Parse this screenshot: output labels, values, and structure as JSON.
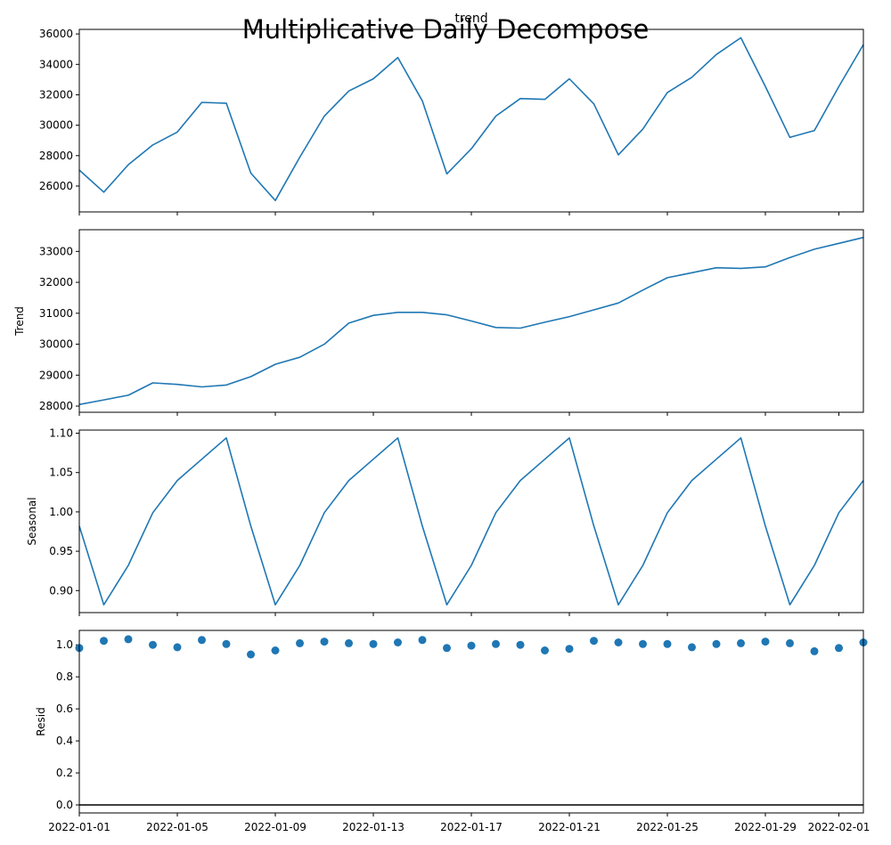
{
  "figure": {
    "suptitle": "Multiplicative Daily Decompose",
    "line_color": "#1f77b4",
    "axes_color": "#000000"
  },
  "chart_data": [
    {
      "type": "line",
      "title": "trend",
      "xlabel": "",
      "ylabel": "",
      "grid": false,
      "x": [
        "2022-01-01",
        "2022-01-02",
        "2022-01-03",
        "2022-01-04",
        "2022-01-05",
        "2022-01-06",
        "2022-01-07",
        "2022-01-08",
        "2022-01-09",
        "2022-01-10",
        "2022-01-11",
        "2022-01-12",
        "2022-01-13",
        "2022-01-14",
        "2022-01-15",
        "2022-01-16",
        "2022-01-17",
        "2022-01-18",
        "2022-01-19",
        "2022-01-20",
        "2022-01-21",
        "2022-01-22",
        "2022-01-23",
        "2022-01-24",
        "2022-01-25",
        "2022-01-26",
        "2022-01-27",
        "2022-01-28",
        "2022-01-29",
        "2022-01-30",
        "2022-01-31",
        "2022-02-01",
        "2022-02-02"
      ],
      "values": [
        27050,
        25600,
        27400,
        28700,
        29550,
        31500,
        31450,
        26850,
        25050,
        27900,
        30600,
        32250,
        33050,
        34450,
        31600,
        26800,
        28450,
        30600,
        31750,
        31700,
        33050,
        31400,
        28050,
        29750,
        32150,
        33150,
        34650,
        35750,
        32550,
        29200,
        29650,
        32550,
        35300
      ],
      "ylim": [
        24300,
        36300
      ],
      "yticks": [
        26000,
        28000,
        30000,
        32000,
        34000,
        36000
      ],
      "show_xtick_labels": false
    },
    {
      "type": "line",
      "title": "",
      "xlabel": "",
      "ylabel": "Trend",
      "grid": false,
      "x": [
        "2022-01-01",
        "2022-01-02",
        "2022-01-03",
        "2022-01-04",
        "2022-01-05",
        "2022-01-06",
        "2022-01-07",
        "2022-01-08",
        "2022-01-09",
        "2022-01-10",
        "2022-01-11",
        "2022-01-12",
        "2022-01-13",
        "2022-01-14",
        "2022-01-15",
        "2022-01-16",
        "2022-01-17",
        "2022-01-18",
        "2022-01-19",
        "2022-01-20",
        "2022-01-21",
        "2022-01-22",
        "2022-01-23",
        "2022-01-24",
        "2022-01-25",
        "2022-01-26",
        "2022-01-27",
        "2022-01-28",
        "2022-01-29",
        "2022-01-30",
        "2022-01-31",
        "2022-02-01",
        "2022-02-02"
      ],
      "values": [
        28050,
        28200,
        28350,
        28750,
        28700,
        28620,
        28680,
        28950,
        29350,
        29580,
        30000,
        30680,
        30930,
        31030,
        31030,
        30950,
        30750,
        30540,
        30520,
        30710,
        30890,
        31110,
        31330,
        31750,
        32150,
        32310,
        32470,
        32450,
        32500,
        32800,
        33070,
        33260,
        33450
      ],
      "ylim": [
        27800,
        33700
      ],
      "yticks": [
        28000,
        29000,
        30000,
        31000,
        32000,
        33000
      ],
      "show_xtick_labels": false
    },
    {
      "type": "line",
      "title": "",
      "xlabel": "",
      "ylabel": "Seasonal",
      "grid": false,
      "x": [
        "2022-01-01",
        "2022-01-02",
        "2022-01-03",
        "2022-01-04",
        "2022-01-05",
        "2022-01-06",
        "2022-01-07",
        "2022-01-08",
        "2022-01-09",
        "2022-01-10",
        "2022-01-11",
        "2022-01-12",
        "2022-01-13",
        "2022-01-14",
        "2022-01-15",
        "2022-01-16",
        "2022-01-17",
        "2022-01-18",
        "2022-01-19",
        "2022-01-20",
        "2022-01-21",
        "2022-01-22",
        "2022-01-23",
        "2022-01-24",
        "2022-01-25",
        "2022-01-26",
        "2022-01-27",
        "2022-01-28",
        "2022-01-29",
        "2022-01-30",
        "2022-01-31",
        "2022-02-01",
        "2022-02-02"
      ],
      "values": [
        0.982,
        0.882,
        0.932,
        0.999,
        1.04,
        1.067,
        1.094,
        0.982,
        0.882,
        0.932,
        0.999,
        1.04,
        1.067,
        1.094,
        0.982,
        0.882,
        0.932,
        0.999,
        1.04,
        1.067,
        1.094,
        0.982,
        0.882,
        0.932,
        0.999,
        1.04,
        1.067,
        1.094,
        0.982,
        0.882,
        0.932,
        0.999,
        1.04
      ],
      "ylim": [
        0.872,
        1.104
      ],
      "yticks": [
        0.9,
        0.95,
        1.0,
        1.05,
        1.1
      ],
      "ytick_labels": [
        "0.90",
        "0.95",
        "1.00",
        "1.05",
        "1.10"
      ],
      "show_xtick_labels": false
    },
    {
      "type": "scatter",
      "title": "",
      "xlabel": "",
      "ylabel": "Resid",
      "grid": false,
      "x": [
        "2022-01-01",
        "2022-01-02",
        "2022-01-03",
        "2022-01-04",
        "2022-01-05",
        "2022-01-06",
        "2022-01-07",
        "2022-01-08",
        "2022-01-09",
        "2022-01-10",
        "2022-01-11",
        "2022-01-12",
        "2022-01-13",
        "2022-01-14",
        "2022-01-15",
        "2022-01-16",
        "2022-01-17",
        "2022-01-18",
        "2022-01-19",
        "2022-01-20",
        "2022-01-21",
        "2022-01-22",
        "2022-01-23",
        "2022-01-24",
        "2022-01-25",
        "2022-01-26",
        "2022-01-27",
        "2022-01-28",
        "2022-01-29",
        "2022-01-30",
        "2022-01-31",
        "2022-02-01",
        "2022-02-02"
      ],
      "values": [
        0.98,
        1.025,
        1.035,
        1.0,
        0.985,
        1.03,
        1.005,
        0.94,
        0.965,
        1.01,
        1.02,
        1.01,
        1.005,
        1.015,
        1.03,
        0.98,
        0.995,
        1.005,
        1.0,
        0.965,
        0.975,
        1.025,
        1.015,
        1.005,
        1.005,
        0.985,
        1.005,
        1.01,
        1.02,
        1.01,
        0.96,
        0.98,
        1.015
      ],
      "baseline": 0.0,
      "ylim": [
        -0.05,
        1.09
      ],
      "yticks": [
        0.0,
        0.2,
        0.4,
        0.6,
        0.8,
        1.0
      ],
      "ytick_labels": [
        "0.0",
        "0.2",
        "0.4",
        "0.6",
        "0.8",
        "1.0"
      ],
      "xtick_labels": [
        "2022-01-01",
        "2022-01-05",
        "2022-01-09",
        "2022-01-13",
        "2022-01-17",
        "2022-01-21",
        "2022-01-25",
        "2022-01-29",
        "2022-02-01"
      ],
      "show_xtick_labels": true
    }
  ]
}
